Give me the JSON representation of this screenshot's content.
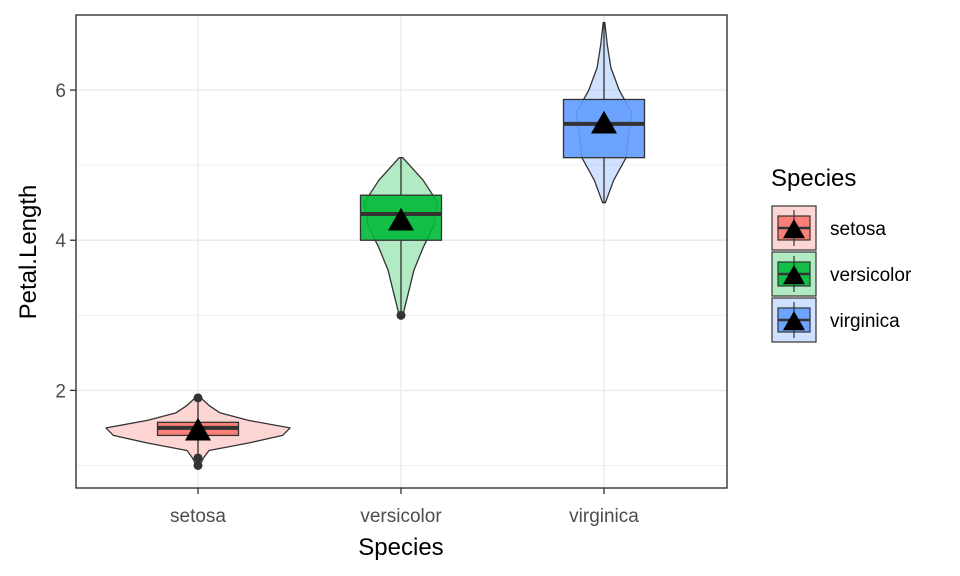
{
  "chart_data": {
    "type": "violin-box",
    "xlabel": "Species",
    "ylabel": "Petal.Length",
    "ylim": [
      0.7,
      7.0
    ],
    "yticks": [
      2,
      4,
      6
    ],
    "grid": true,
    "legend": {
      "title": "Species",
      "placement": "right"
    },
    "categories": [
      "setosa",
      "versicolor",
      "virginica"
    ],
    "series": [
      {
        "name": "setosa",
        "color": "#F8766D",
        "min": 1.0,
        "q1": 1.4,
        "median": 1.5,
        "q3": 1.575,
        "max": 1.9,
        "mean": 1.462,
        "outliers": [
          1.0,
          1.1,
          1.9
        ],
        "violin_points": [
          1.0,
          1.1,
          1.2,
          1.3,
          1.4,
          1.5,
          1.6,
          1.7,
          1.8,
          1.9
        ],
        "violin_density": [
          0.02,
          0.06,
          0.12,
          0.55,
          0.92,
          1.0,
          0.55,
          0.24,
          0.12,
          0.03
        ]
      },
      {
        "name": "versicolor",
        "color": "#00BA38",
        "min": 3.0,
        "q1": 4.0,
        "median": 4.35,
        "q3": 4.6,
        "max": 5.1,
        "mean": 4.26,
        "outliers": [
          3.0
        ],
        "violin_points": [
          3.0,
          3.3,
          3.6,
          3.9,
          4.2,
          4.5,
          4.8,
          5.1
        ],
        "violin_density": [
          0.05,
          0.2,
          0.35,
          0.6,
          0.9,
          1.0,
          0.6,
          0.05
        ]
      },
      {
        "name": "virginica",
        "color": "#619CFF",
        "min": 4.5,
        "q1": 5.1,
        "median": 5.55,
        "q3": 5.875,
        "max": 6.9,
        "mean": 5.552,
        "outliers": [],
        "violin_points": [
          4.5,
          4.8,
          5.1,
          5.4,
          5.7,
          6.0,
          6.3,
          6.6,
          6.9
        ],
        "violin_density": [
          0.05,
          0.35,
          0.8,
          0.9,
          1.0,
          0.55,
          0.25,
          0.12,
          0.03
        ]
      }
    ]
  }
}
